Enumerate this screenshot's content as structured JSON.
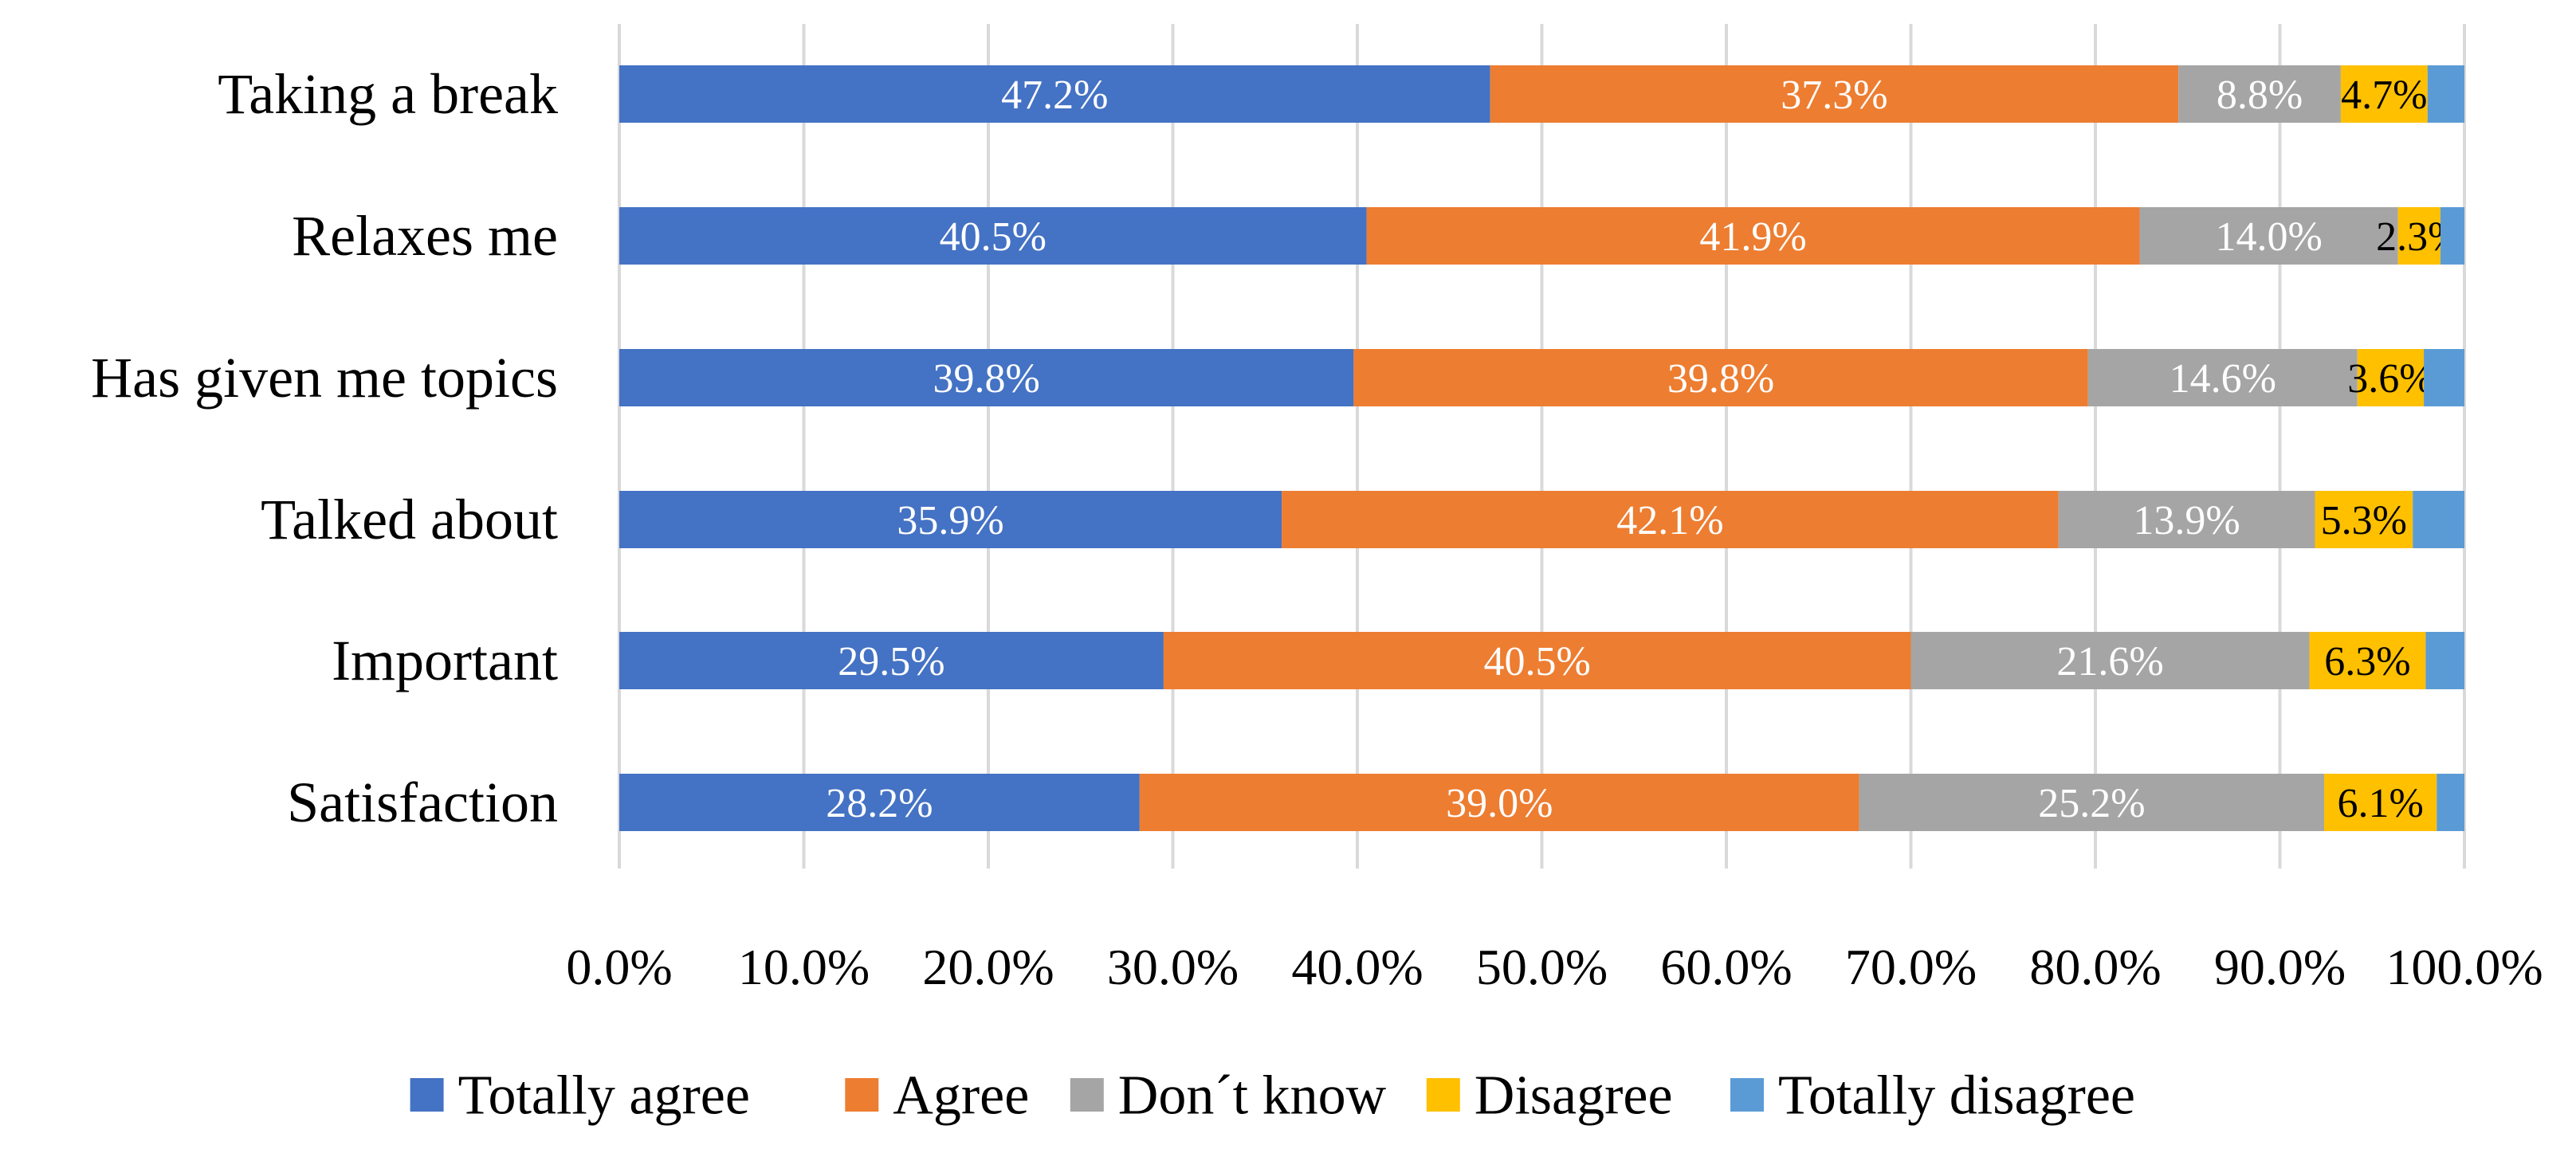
{
  "chart_data": {
    "type": "bar",
    "orientation": "horizontal",
    "stacked": true,
    "title": "",
    "xlabel": "",
    "ylabel": "",
    "xlim": [
      0,
      100
    ],
    "x_ticks": [
      "0.0%",
      "10.0%",
      "20.0%",
      "30.0%",
      "40.0%",
      "50.0%",
      "60.0%",
      "70.0%",
      "80.0%",
      "90.0%",
      "100.0%"
    ],
    "grid": "vertical",
    "legend_position": "bottom",
    "categories": [
      "Taking a break",
      "Relaxes me",
      "Has given me topics",
      "Talked about",
      "Important",
      "Satisfaction"
    ],
    "series": [
      {
        "name": "Totally agree",
        "color": "#4472C4",
        "label_color": "#ffffff",
        "values": [
          47.2,
          40.5,
          39.8,
          35.9,
          29.5,
          28.2
        ],
        "labels": [
          "47.2%",
          "40.5%",
          "39.8%",
          "35.9%",
          "29.5%",
          "28.2%"
        ]
      },
      {
        "name": "Agree",
        "color": "#ED7D31",
        "label_color": "#ffffff",
        "values": [
          37.3,
          41.9,
          39.8,
          42.1,
          40.5,
          39.0
        ],
        "labels": [
          "37.3%",
          "41.9%",
          "39.8%",
          "42.1%",
          "40.5%",
          "39.0%"
        ]
      },
      {
        "name": "Don´t know",
        "color": "#A5A5A5",
        "label_color": "#ffffff",
        "values": [
          8.8,
          14.0,
          14.6,
          13.9,
          21.6,
          25.2
        ],
        "labels": [
          "8.8%",
          "14.0%",
          "14.6%",
          "13.9%",
          "21.6%",
          "25.2%"
        ]
      },
      {
        "name": "Disagree",
        "color": "#FFC000",
        "label_color": "#000000",
        "values": [
          4.7,
          2.3,
          3.6,
          5.3,
          6.3,
          6.1
        ],
        "labels": [
          "4.7%",
          "2.3%",
          "3.6%",
          "5.3%",
          "6.3%",
          "6.1%"
        ]
      },
      {
        "name": "Totally disagree",
        "color": "#5B9BD5",
        "label_color": "#ffffff",
        "values": [
          2.0,
          1.3,
          2.2,
          2.8,
          2.1,
          1.5
        ],
        "labels": [
          "",
          "",
          "",
          "",
          "",
          ""
        ]
      }
    ]
  }
}
